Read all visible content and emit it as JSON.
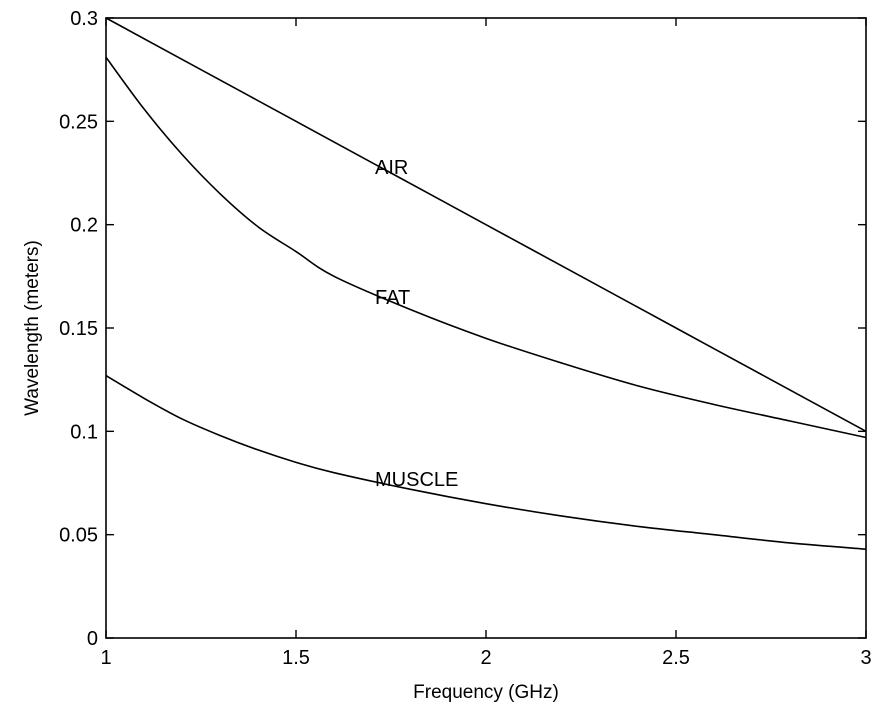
{
  "chart_data": {
    "type": "line",
    "title": "",
    "xlabel": "Frequency (GHz)",
    "ylabel": "Wavelength (meters)",
    "xlim": [
      1,
      3
    ],
    "ylim": [
      0,
      0.3
    ],
    "grid": false,
    "xticks": [
      1,
      1.5,
      2,
      2.5,
      3
    ],
    "xtick_labels": [
      "1",
      "1.5",
      "2",
      "2.5",
      "3"
    ],
    "yticks": [
      0,
      0.05,
      0.1,
      0.15,
      0.2,
      0.25,
      0.3
    ],
    "ytick_labels": [
      "0",
      "0.05",
      "0.1",
      "0.15",
      "0.2",
      "0.25",
      "0.3"
    ],
    "series": [
      {
        "name": "AIR",
        "label_at": [
          1.75,
          0.228
        ],
        "x": [
          1.0,
          1.25,
          1.5,
          1.75,
          2.0,
          2.25,
          2.5,
          2.75,
          3.0
        ],
        "y": [
          0.3,
          0.275,
          0.25,
          0.225,
          0.2,
          0.175,
          0.15,
          0.125,
          0.1
        ]
      },
      {
        "name": "FAT",
        "label_at": [
          1.75,
          0.165
        ],
        "x": [
          1.0,
          1.1,
          1.2,
          1.3,
          1.4,
          1.5,
          1.6,
          1.8,
          2.0,
          2.2,
          2.4,
          2.6,
          2.8,
          3.0
        ],
        "y": [
          0.281,
          0.256,
          0.234,
          0.215,
          0.199,
          0.187,
          0.175,
          0.159,
          0.145,
          0.133,
          0.122,
          0.113,
          0.105,
          0.097
        ]
      },
      {
        "name": "MUSCLE",
        "label_at": [
          1.75,
          0.077
        ],
        "x": [
          1.0,
          1.1,
          1.2,
          1.3,
          1.4,
          1.5,
          1.6,
          1.8,
          2.0,
          2.2,
          2.4,
          2.6,
          2.8,
          3.0
        ],
        "y": [
          0.127,
          0.116,
          0.106,
          0.098,
          0.091,
          0.085,
          0.08,
          0.072,
          0.065,
          0.059,
          0.054,
          0.05,
          0.046,
          0.043
        ]
      }
    ]
  }
}
